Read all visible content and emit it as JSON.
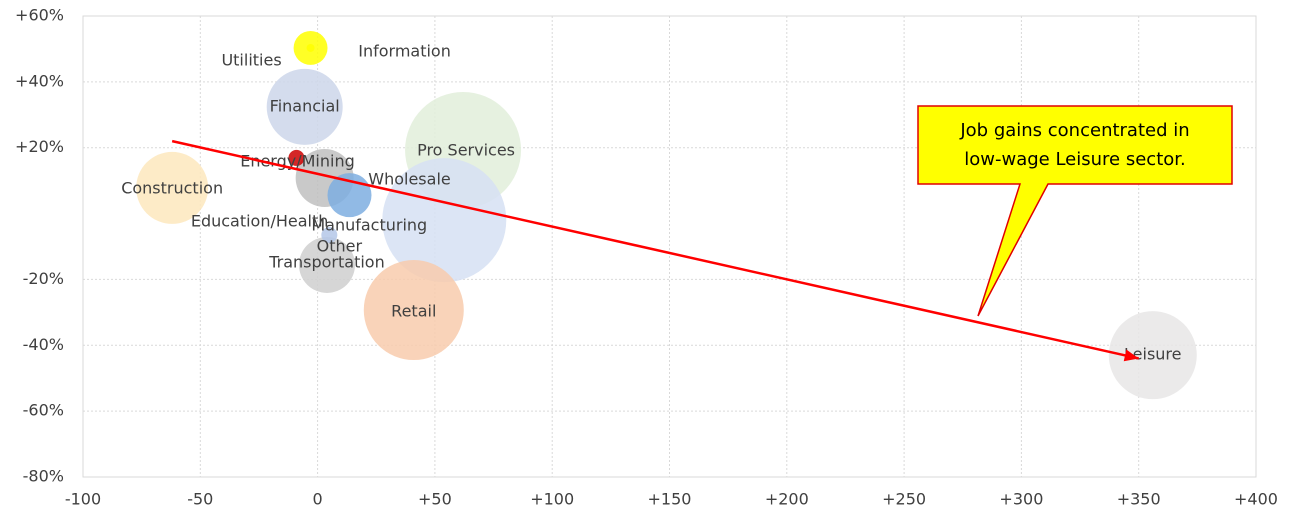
{
  "chart_data": {
    "type": "bubble",
    "categories": [
      "Pro Services",
      "Manufacturing",
      "Retail",
      "Leisure",
      "Financial",
      "Construction",
      "Education/Health",
      "Transportation",
      "Wholesale",
      "Utilities",
      "Information",
      "Energy/Mining",
      "Other"
    ],
    "x": [
      62,
      54,
      41,
      356,
      -5.5,
      -62,
      3,
      4,
      13.6,
      -3,
      -3,
      -9,
      5
    ],
    "values": [
      19.3,
      -2,
      -29.3,
      -43,
      32.4,
      7.8,
      10.8,
      -15.6,
      5.6,
      50.3,
      50.3,
      16.9,
      -6.5
    ],
    "sizes": [
      841,
      961,
      625,
      484,
      361,
      324,
      210,
      196,
      121,
      72,
      4,
      16,
      16
    ],
    "colors": [
      "#e2efda",
      "#d6e0f3",
      "#f8cbad",
      "#e7e6e6",
      "#ccd6ea",
      "#fde7bd",
      "#bfbfbf",
      "#cfcfcf",
      "#7eaee0",
      "#ffff00",
      "#ffff00",
      "#cc0000",
      "#b4c7e7"
    ],
    "xlim": [
      -100,
      400
    ],
    "xticks": [
      -100,
      -50,
      0,
      {
        "value": 50,
        "label": "+50"
      },
      {
        "value": 100,
        "label": "+100"
      },
      {
        "value": 150,
        "label": "+150"
      },
      {
        "value": 200,
        "label": "+200"
      },
      {
        "value": 250,
        "label": "+250"
      },
      {
        "value": 300,
        "label": "+300"
      },
      {
        "value": 350,
        "label": "+350"
      },
      {
        "value": 400,
        "label": "+400"
      }
    ],
    "ylim": [
      -80,
      60
    ],
    "yticks": [
      {
        "value": -80,
        "label": "-80%"
      },
      {
        "value": -60,
        "label": "-60%"
      },
      {
        "value": -40,
        "label": "-40%"
      },
      {
        "value": -20,
        "label": "-20%"
      },
      {
        "value": 20,
        "label": "+20%"
      },
      {
        "value": 40,
        "label": "+40%"
      },
      {
        "value": 60,
        "label": "+60%"
      }
    ],
    "grid": true,
    "trendline": {
      "x": [
        -62,
        350
      ],
      "y": [
        22,
        -44
      ],
      "color": "#ff0000"
    },
    "annotation": [
      "Job gains concentrated in",
      "low-wage Leisure sector."
    ]
  }
}
